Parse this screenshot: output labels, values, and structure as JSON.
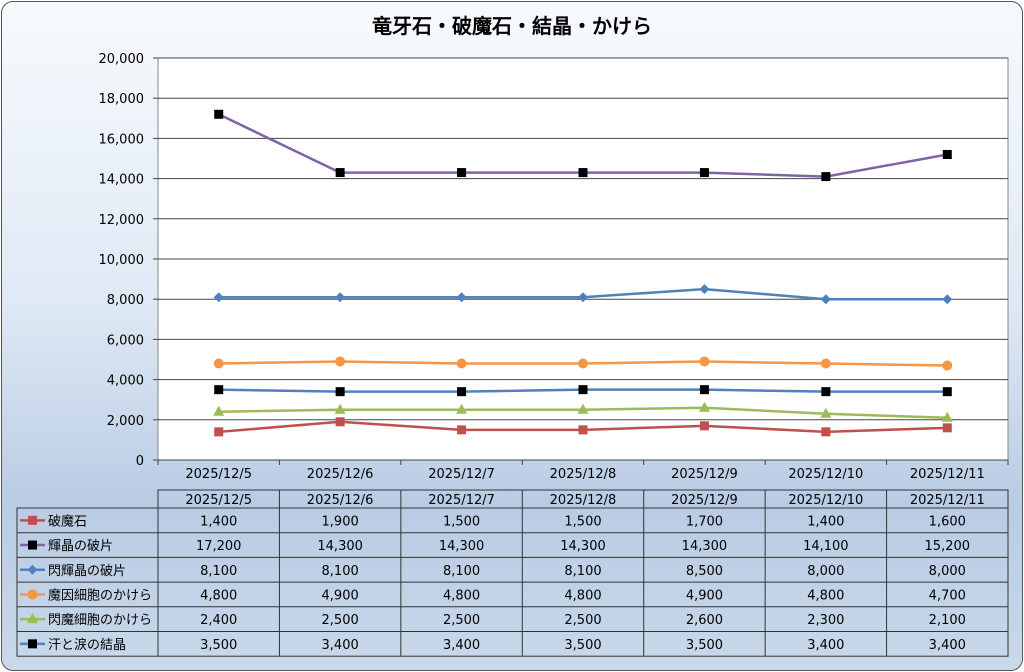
{
  "chart_data": {
    "type": "line",
    "title": "竜牙石・破魔石・結晶・かけら",
    "categories": [
      "2025/12/5",
      "2025/12/6",
      "2025/12/7",
      "2025/12/8",
      "2025/12/9",
      "2025/12/10",
      "2025/12/11"
    ],
    "ylim": [
      0,
      20000
    ],
    "yticks": [
      "0",
      "2,000",
      "4,000",
      "6,000",
      "8,000",
      "10,000",
      "12,000",
      "14,000",
      "16,000",
      "18,000",
      "20,000"
    ],
    "grid": true,
    "legend": "data-table",
    "series": [
      {
        "name": "破魔石",
        "values": [
          1400,
          1900,
          1500,
          1500,
          1700,
          1400,
          1600
        ],
        "labels": [
          "1,400",
          "1,900",
          "1,500",
          "1,500",
          "1,700",
          "1,400",
          "1,600"
        ],
        "color": "#c0504d",
        "marker": "square",
        "marker_color": "#c0504d"
      },
      {
        "name": "輝晶の破片",
        "values": [
          17200,
          14300,
          14300,
          14300,
          14300,
          14100,
          15200
        ],
        "labels": [
          "17,200",
          "14,300",
          "14,300",
          "14,300",
          "14,300",
          "14,100",
          "15,200"
        ],
        "color": "#8064a2",
        "marker": "square",
        "marker_color": "#000000"
      },
      {
        "name": "閃輝晶の破片",
        "values": [
          8100,
          8100,
          8100,
          8100,
          8500,
          8000,
          8000
        ],
        "labels": [
          "8,100",
          "8,100",
          "8,100",
          "8,100",
          "8,500",
          "8,000",
          "8,000"
        ],
        "color": "#4f81bd",
        "marker": "diamond",
        "marker_color": "#4f81bd"
      },
      {
        "name": "魔因細胞のかけら",
        "values": [
          4800,
          4900,
          4800,
          4800,
          4900,
          4800,
          4700
        ],
        "labels": [
          "4,800",
          "4,900",
          "4,800",
          "4,800",
          "4,900",
          "4,800",
          "4,700"
        ],
        "color": "#f79646",
        "marker": "circle",
        "marker_color": "#f79646"
      },
      {
        "name": "閃魔細胞のかけら",
        "values": [
          2400,
          2500,
          2500,
          2500,
          2600,
          2300,
          2100
        ],
        "labels": [
          "2,400",
          "2,500",
          "2,500",
          "2,500",
          "2,600",
          "2,300",
          "2,100"
        ],
        "color": "#9bbb59",
        "marker": "triangle",
        "marker_color": "#9bbb59"
      },
      {
        "name": "汗と涙の結晶",
        "values": [
          3500,
          3400,
          3400,
          3500,
          3500,
          3400,
          3400
        ],
        "labels": [
          "3,500",
          "3,400",
          "3,400",
          "3,500",
          "3,500",
          "3,400",
          "3,400"
        ],
        "color": "#4f81bd",
        "marker": "square",
        "marker_color": "#000000"
      }
    ]
  }
}
